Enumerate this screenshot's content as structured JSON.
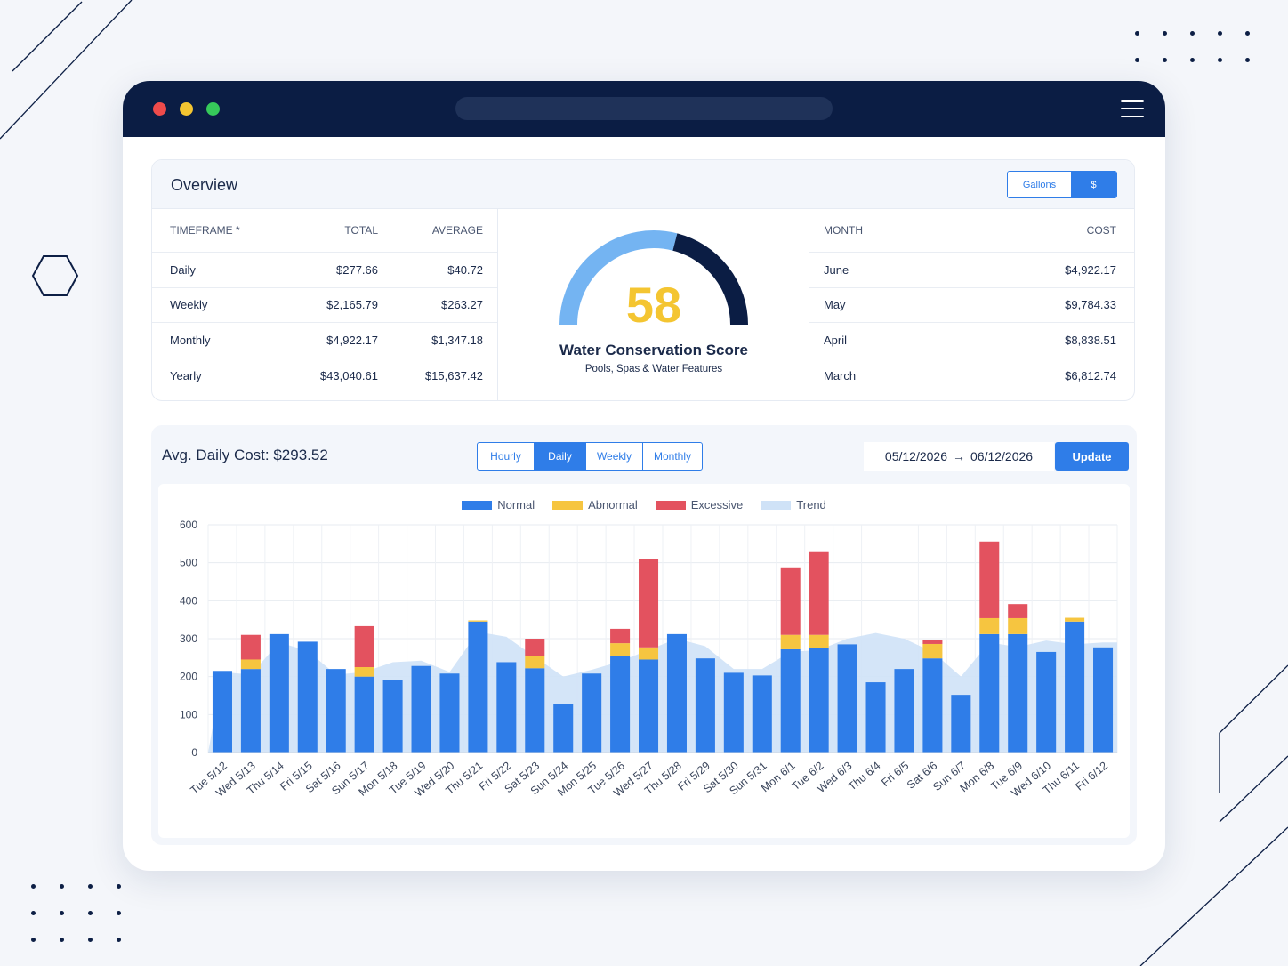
{
  "colors": {
    "navy": "#0b1d44",
    "accent": "#2f7de8",
    "normal": "#2f7de8",
    "abnormal": "#f6c540",
    "excessive": "#e3525f",
    "trend": "#cfe2f7",
    "gauge_light": "#74b4f2",
    "gauge_dark": "#0b1d44",
    "score": "#f4c531",
    "traffic_red": "#ef4b4b",
    "traffic_yellow": "#f4c531",
    "traffic_green": "#36c95a"
  },
  "overview": {
    "title": "Overview",
    "unit_toggle": {
      "gallons": "Gallons",
      "dollars": "$",
      "selected": "$"
    },
    "timeframe_table": {
      "headers": [
        "TIMEFRAME *",
        "TOTAL",
        "AVERAGE"
      ],
      "rows": [
        {
          "label": "Daily",
          "total": "$277.66",
          "average": "$40.72"
        },
        {
          "label": "Weekly",
          "total": "$2,165.79",
          "average": "$263.27"
        },
        {
          "label": "Monthly",
          "total": "$4,922.17",
          "average": "$1,347.18"
        },
        {
          "label": "Yearly",
          "total": "$43,040.61",
          "average": "$15,637.42"
        }
      ]
    },
    "gauge": {
      "score": "58",
      "value": 58,
      "max": 100,
      "title": "Water Conservation Score",
      "subtitle": "Pools, Spas & Water Features"
    },
    "month_table": {
      "headers": [
        "MONTH",
        "COST"
      ],
      "rows": [
        {
          "month": "June",
          "cost": "$4,922.17"
        },
        {
          "month": "May",
          "cost": "$9,784.33"
        },
        {
          "month": "April",
          "cost": "$8,838.51"
        },
        {
          "month": "March",
          "cost": "$6,812.74"
        }
      ]
    }
  },
  "cost_panel": {
    "title": "Avg. Daily Cost: $293.52",
    "tabs": [
      "Hourly",
      "Daily",
      "Weekly",
      "Monthly"
    ],
    "active_tab": "Daily",
    "date_start": "05/12/2026",
    "date_arrow": "→",
    "date_end": "06/12/2026",
    "update_label": "Update"
  },
  "chart_data": {
    "type": "bar",
    "stacked": true,
    "categories": [
      "Tue 5/12",
      "Wed 5/13",
      "Thu 5/14",
      "Fri 5/15",
      "Sat 5/16",
      "Sun 5/17",
      "Mon 5/18",
      "Tue 5/19",
      "Wed 5/20",
      "Thu 5/21",
      "Fri 5/22",
      "Sat 5/23",
      "Sun 5/24",
      "Mon 5/25",
      "Tue 5/26",
      "Wed 5/27",
      "Thu 5/28",
      "Fri 5/29",
      "Sat 5/30",
      "Sun 5/31",
      "Mon 6/1",
      "Tue 6/2",
      "Wed 6/3",
      "Thu 6/4",
      "Fri 6/5",
      "Sat 6/6",
      "Sun 6/7",
      "Mon 6/8",
      "Tue 6/9",
      "Wed 6/10",
      "Thu 6/11",
      "Fri 6/12"
    ],
    "series": [
      {
        "name": "Normal",
        "values": [
          215,
          220,
          312,
          292,
          220,
          200,
          190,
          228,
          208,
          345,
          238,
          222,
          127,
          208,
          255,
          245,
          312,
          248,
          210,
          203,
          272,
          275,
          285,
          185,
          220,
          248,
          152,
          312,
          312,
          265,
          345,
          277
        ]
      },
      {
        "name": "Abnormal",
        "values": [
          0,
          25,
          0,
          0,
          0,
          25,
          0,
          0,
          0,
          3,
          0,
          33,
          0,
          0,
          33,
          32,
          0,
          0,
          0,
          0,
          38,
          35,
          0,
          0,
          0,
          38,
          0,
          42,
          42,
          0,
          10,
          0
        ]
      },
      {
        "name": "Excessive",
        "values": [
          0,
          65,
          0,
          0,
          0,
          108,
          0,
          0,
          0,
          0,
          0,
          45,
          0,
          0,
          38,
          232,
          0,
          0,
          0,
          0,
          178,
          218,
          0,
          0,
          0,
          10,
          0,
          202,
          37,
          0,
          0,
          0
        ]
      }
    ],
    "trend": {
      "name": "Trend",
      "values": [
        212,
        205,
        290,
        268,
        205,
        212,
        238,
        242,
        212,
        318,
        305,
        252,
        200,
        218,
        240,
        270,
        300,
        280,
        220,
        220,
        265,
        270,
        300,
        315,
        300,
        265,
        200,
        290,
        278,
        295,
        285,
        290
      ]
    },
    "yticks": [
      "0",
      "100",
      "200",
      "300",
      "400",
      "500",
      "600"
    ],
    "ylim": [
      0,
      600
    ],
    "legend": [
      "Normal",
      "Abnormal",
      "Excessive",
      "Trend"
    ],
    "legend_position": "top-center",
    "grid": true
  }
}
